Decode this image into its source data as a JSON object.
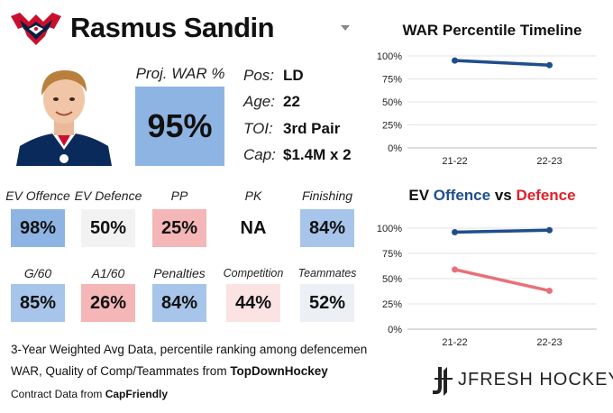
{
  "header": {
    "player_name": "Rasmus Sandin",
    "logo_icon": "capitals-eagle-logo",
    "dropdown_icon": "chevron-down-icon"
  },
  "card": {
    "proj_war_label": "Proj. WAR %",
    "proj_war_value": "95%",
    "proj_war_color": "#8eb4e3",
    "info": [
      {
        "key": "Pos:",
        "value": "LD"
      },
      {
        "key": "Age:",
        "value": "22"
      },
      {
        "key": "TOI:",
        "value": "3rd Pair"
      },
      {
        "key": "Cap:",
        "value": "$1.4M x 2"
      }
    ]
  },
  "stats_row1": [
    {
      "label": "EV Offence",
      "value": "98%",
      "color": "#8eb4e3"
    },
    {
      "label": "EV Defence",
      "value": "50%",
      "color": "#f2f2f2"
    },
    {
      "label": "PP",
      "value": "25%",
      "color": "#f4b6b6"
    },
    {
      "label": "PK",
      "value": "NA",
      "color": "#ffffff"
    },
    {
      "label": "Finishing",
      "value": "84%",
      "color": "#a7c5ea"
    }
  ],
  "stats_row2": [
    {
      "label": "G/60",
      "value": "85%",
      "color": "#a7c5ea"
    },
    {
      "label": "A1/60",
      "value": "26%",
      "color": "#f4b6b6"
    },
    {
      "label": "Penalties",
      "value": "84%",
      "color": "#a7c5ea"
    },
    {
      "label": "Competition",
      "value": "44%",
      "color": "#fbe3e3"
    },
    {
      "label": "Teammates",
      "value": "52%",
      "color": "#eceff3"
    }
  ],
  "footer": {
    "line1": "3-Year Weighted Avg Data, percentile ranking among defencemen",
    "line2_prefix": "WAR, Quality of Comp/Teammates from ",
    "line2_source": "TopDownHockey",
    "line3_prefix": "Contract Data from ",
    "line3_source": "CapFriendly",
    "brand": "JFRESH HOCKEY",
    "brand_icon": "jfresh-hockey-stick-icon"
  },
  "chart_data": [
    {
      "type": "line",
      "title": "WAR Percentile Timeline",
      "categories": [
        "21-22",
        "22-23"
      ],
      "series": [
        {
          "values": [
            95,
            90
          ],
          "color": "#1f4e8c"
        }
      ],
      "ylim": [
        0,
        100
      ],
      "yticks": [
        "0%",
        "25%",
        "50%",
        "75%",
        "100%"
      ],
      "grid": true
    },
    {
      "type": "line",
      "title_parts": {
        "prefix": "EV ",
        "offence": "Offence",
        "mid": " vs ",
        "defence": "Defence"
      },
      "title_colors": {
        "offence": "#1f4e8c",
        "defence": "#e0202a"
      },
      "categories": [
        "21-22",
        "22-23"
      ],
      "series": [
        {
          "values": [
            96,
            98
          ],
          "color": "#1f4e8c"
        },
        {
          "values": [
            59,
            38
          ],
          "color": "#e8707a"
        }
      ],
      "ylim": [
        0,
        100
      ],
      "yticks": [
        "0%",
        "25%",
        "50%",
        "75%",
        "100%"
      ],
      "grid": true
    }
  ]
}
